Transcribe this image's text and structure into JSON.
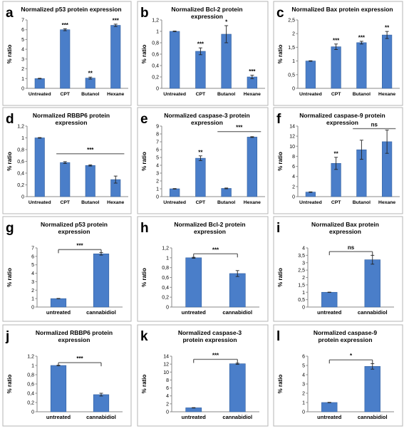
{
  "chart_data": [
    {
      "panel": "a",
      "type": "bar",
      "title": "Normalized p53 protein expression",
      "ylabel": "% ratio",
      "categories": [
        "Untreated",
        "CPT",
        "Butanol",
        "Hexane"
      ],
      "values": [
        1.0,
        6.0,
        1.05,
        6.45
      ],
      "errors": [
        0.03,
        0.1,
        0.1,
        0.12
      ],
      "significance": [
        "",
        "***",
        "**",
        "***"
      ],
      "ylim": [
        0,
        7
      ],
      "yticks": [
        "0",
        "1",
        "2",
        "3",
        "4",
        "5",
        "6",
        "7"
      ],
      "bracket": null
    },
    {
      "panel": "b",
      "type": "bar",
      "title": "Normalized Bcl-2 protein expression",
      "ylabel": "% ratio",
      "categories": [
        "Untreated",
        "CPT",
        "Butanol",
        "Hexane"
      ],
      "values": [
        1.0,
        0.65,
        0.95,
        0.2
      ],
      "errors": [
        0.005,
        0.06,
        0.15,
        0.03
      ],
      "significance": [
        "",
        "***",
        "*",
        "***"
      ],
      "ylim": [
        0,
        1.2
      ],
      "yticks": [
        "0",
        "0,2",
        "0,4",
        "0,6",
        "0,8",
        "1",
        "1,2"
      ],
      "bracket": null
    },
    {
      "panel": "c",
      "type": "bar",
      "title": "Normalized Bax protein expression",
      "ylabel": "% ratio",
      "categories": [
        "Untreated",
        "CPT",
        "Butanol",
        "Hexane"
      ],
      "values": [
        1.0,
        1.52,
        1.67,
        1.95
      ],
      "errors": [
        0.01,
        0.1,
        0.05,
        0.13
      ],
      "significance": [
        "",
        "***",
        "***",
        "**"
      ],
      "ylim": [
        0,
        2.5
      ],
      "yticks": [
        "0",
        "0,5",
        "1",
        "1,5",
        "2",
        "2,5"
      ],
      "bracket": null
    },
    {
      "panel": "d",
      "type": "bar",
      "title": "Normalized RBBP6 protein expression",
      "ylabel": "% ratio",
      "categories": [
        "Untreated",
        "CPT",
        "Butanol",
        "Hexane"
      ],
      "values": [
        1.0,
        0.58,
        0.53,
        0.29
      ],
      "errors": [
        0.005,
        0.015,
        0.01,
        0.06
      ],
      "significance": [
        "",
        "",
        "",
        ""
      ],
      "ylim": [
        0,
        1.2
      ],
      "yticks": [
        "0",
        "0,2",
        "0,4",
        "0,6",
        "0,8",
        "1",
        "1,2"
      ],
      "bracket": {
        "from": 1,
        "to": 3,
        "label": "***",
        "y": 0.73,
        "style": "line"
      }
    },
    {
      "panel": "e",
      "type": "bar",
      "title": "Normalized caspase-3 protein expression",
      "ylabel": "% ratio",
      "categories": [
        "Untreated",
        "CPT",
        "Butanol",
        "Hexane"
      ],
      "values": [
        1.0,
        4.9,
        1.05,
        7.6
      ],
      "errors": [
        0.03,
        0.3,
        0.05,
        0.05
      ],
      "significance": [
        "",
        "**",
        "",
        ""
      ],
      "ylim": [
        0,
        9
      ],
      "yticks": [
        "0",
        "1",
        "2",
        "3",
        "4",
        "5",
        "6",
        "7",
        "8",
        "9"
      ],
      "bracket": {
        "from": 2,
        "to": 3,
        "label": "***",
        "y": 8.3,
        "style": "line"
      }
    },
    {
      "panel": "f",
      "type": "bar",
      "title": "Normalized caspase-9 protein expression",
      "ylabel": "% ratio",
      "categories": [
        "Untreated",
        "CPT",
        "Butanol",
        "Hexane"
      ],
      "values": [
        0.9,
        6.6,
        9.3,
        10.9
      ],
      "errors": [
        0.05,
        1.2,
        1.9,
        2.3
      ],
      "significance": [
        "",
        "**",
        "",
        ""
      ],
      "ylim": [
        0,
        14
      ],
      "yticks": [
        "0",
        "2",
        "4",
        "6",
        "8",
        "10",
        "12",
        "14"
      ],
      "bracket": {
        "from": 2,
        "to": 3,
        "label": "ns",
        "y": 13.5,
        "style": "line"
      }
    },
    {
      "panel": "g",
      "type": "bar",
      "title": "Normalized p53 protein expression",
      "ylabel": "% ratio",
      "categories": [
        "untreated",
        "cannabidiol"
      ],
      "values": [
        1.0,
        6.3
      ],
      "errors": [
        0.02,
        0.15
      ],
      "significance": [
        "",
        ""
      ],
      "ylim": [
        0,
        7
      ],
      "yticks": [
        "0",
        "1",
        "2",
        "3",
        "4",
        "5",
        "6",
        "7"
      ],
      "bracket": {
        "from": 0,
        "to": 1,
        "label": "***",
        "y": 6.8,
        "style": "bracket"
      }
    },
    {
      "panel": "h",
      "type": "bar",
      "title": "Normalized Bcl-2 protein expression",
      "ylabel": "% ratio",
      "categories": [
        "untreated",
        "cannabidiol"
      ],
      "values": [
        1.0,
        0.68
      ],
      "errors": [
        0.01,
        0.06
      ],
      "significance": [
        "",
        ""
      ],
      "ylim": [
        0,
        1.2
      ],
      "yticks": [
        "0",
        "0,2",
        "0,4",
        "0,6",
        "0,8",
        "1",
        "1,2"
      ],
      "bracket": {
        "from": 0,
        "to": 1,
        "label": "***",
        "y": 1.08,
        "style": "bracket"
      }
    },
    {
      "panel": "i",
      "type": "bar",
      "title": "Normalized Bax protein expression",
      "ylabel": "% ratio",
      "categories": [
        "untreated",
        "cannabidiol"
      ],
      "values": [
        1.0,
        3.2
      ],
      "errors": [
        0.01,
        0.3
      ],
      "significance": [
        "",
        ""
      ],
      "ylim": [
        0,
        4
      ],
      "yticks": [
        "0",
        "0,5",
        "1",
        "1,5",
        "2",
        "2,5",
        "3",
        "3,5",
        "4"
      ],
      "bracket": {
        "from": 0,
        "to": 1,
        "label": "ns",
        "y": 3.75,
        "style": "bracket"
      }
    },
    {
      "panel": "j",
      "type": "bar",
      "title": "Normalized RBBP6 protein expression",
      "ylabel": "% ratio",
      "categories": [
        "untreated",
        "cannabidiol"
      ],
      "values": [
        1.0,
        0.37
      ],
      "errors": [
        0.005,
        0.03
      ],
      "significance": [
        "",
        ""
      ],
      "ylim": [
        0,
        1.2
      ],
      "yticks": [
        "0",
        "0,2",
        "0,4",
        "0,6",
        "0,8",
        "1",
        "1,2"
      ],
      "bracket": {
        "from": 0,
        "to": 1,
        "label": "***",
        "y": 1.06,
        "style": "bracket"
      }
    },
    {
      "panel": "k",
      "type": "bar",
      "title": "Normalized caspase-3 protein expression",
      "ylabel": "% ratio",
      "categories": [
        "untreated",
        "cannabidiol"
      ],
      "values": [
        1.0,
        12.1
      ],
      "errors": [
        0.05,
        0.15
      ],
      "significance": [
        "",
        ""
      ],
      "ylim": [
        0,
        14
      ],
      "yticks": [
        "0",
        "2",
        "4",
        "6",
        "8",
        "10",
        "12",
        "14"
      ],
      "bracket": {
        "from": 0,
        "to": 1,
        "label": "***",
        "y": 13.2,
        "style": "bracket"
      }
    },
    {
      "panel": "l",
      "type": "bar",
      "title": "Normalized caspase-9 protein expression",
      "ylabel": "% ratio",
      "categories": [
        "untreated",
        "cannabidiol"
      ],
      "values": [
        1.0,
        4.9
      ],
      "errors": [
        0.02,
        0.3
      ],
      "significance": [
        "",
        ""
      ],
      "ylim": [
        0,
        6
      ],
      "yticks": [
        "0",
        "1",
        "2",
        "3",
        "4",
        "5",
        "6"
      ],
      "bracket": {
        "from": 0,
        "to": 1,
        "label": "*",
        "y": 5.6,
        "style": "bracket"
      }
    }
  ],
  "colors": {
    "bar": "#4a7ec9",
    "bar_edge": "#35619f",
    "frame": "#b5b5b5",
    "grid_axis": "#888888",
    "line": "#777777",
    "text": "#000000"
  }
}
